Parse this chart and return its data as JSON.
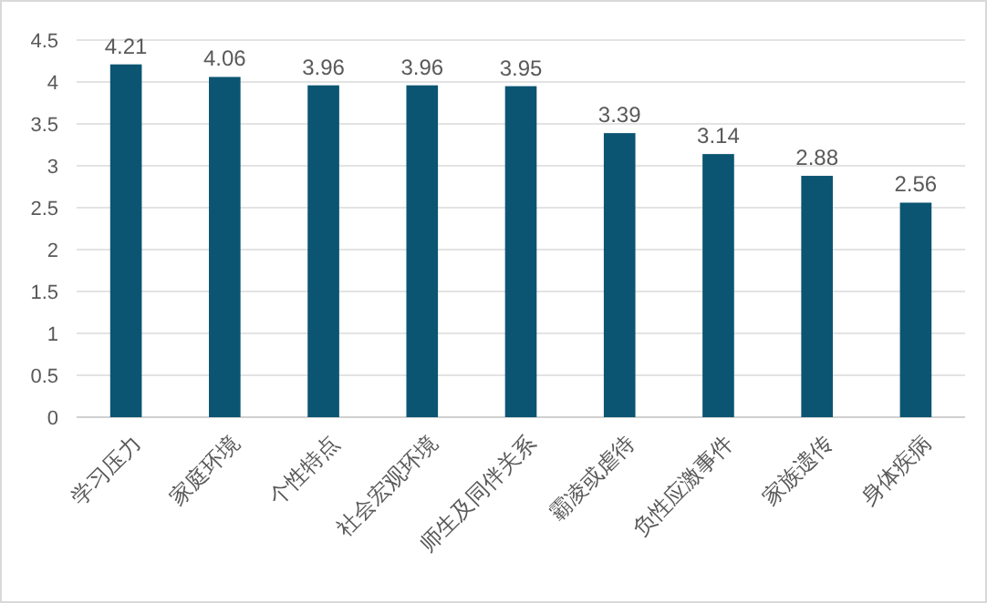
{
  "chart_data": {
    "type": "bar",
    "categories": [
      "学习压力",
      "家庭环境",
      "个性特点",
      "社会宏观环境",
      "师生及同伴关系",
      "霸凌或虐待",
      "负性应激事件",
      "家族遗传",
      "身体疾病"
    ],
    "values": [
      4.21,
      4.06,
      3.96,
      3.96,
      3.95,
      3.39,
      3.14,
      2.88,
      2.56
    ],
    "color": "#0b5572",
    "ylim": [
      0,
      4.5
    ],
    "yticks": [
      0,
      0.5,
      1,
      1.5,
      2,
      2.5,
      3,
      3.5,
      4,
      4.5
    ],
    "grid": "y",
    "data_labels": true
  }
}
